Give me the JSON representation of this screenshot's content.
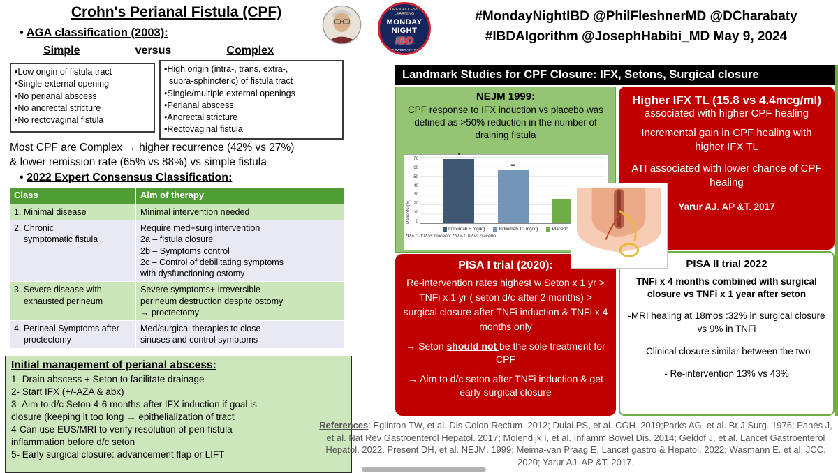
{
  "theme": {
    "table_header_green": "#4f9d35",
    "light_green_row": "#cbe6b8",
    "lavender_row": "#e9e9f4",
    "panel_green": "#cde7bd",
    "nejm_box_green": "#93c572",
    "red_box": "#c00000",
    "banner_black": "#000000",
    "pisa2_border_green": "#70ad47",
    "references_gray": "#595959"
  },
  "header": {
    "title": "Crohn's Perianal Fistula (CPF)",
    "social_line1": "#MondayNightIBD @PhilFleshnerMD @DCharabaty",
    "social_line2": "#IBDAlgorithm @JosephHabibi_MD May 9, 2024"
  },
  "logo": {
    "arc_top": "OPEN ACCESS LEARNING",
    "word1": "MONDAY",
    "word2": "NIGHT",
    "word3": "IBD",
    "tagline": "ONE TWEET AT A TIME"
  },
  "aga": {
    "bullet": "•",
    "heading": "AGA classification (2003):",
    "simple_label": "Simple",
    "versus_label": "versus",
    "complex_label": "Complex",
    "simple_items": "•Low origin of fistula tract\n•Single external opening\n•No perianal abscess\n•No anorectal stricture\n•No rectovaginal fistula",
    "complex_items": "•High origin (intra-, trans, extra-,\n  supra-sphincteric) of fistula tract\n•Single/multiple external openings\n•Perianal abscess\n•Anorectal stricture\n•Rectovaginal fistula",
    "summary_line1": "Most CPF are Complex → higher recurrence (42% vs 27%)",
    "summary_line2": "& lower remission rate (65% vs 88%) vs simple fistula"
  },
  "consensus": {
    "bullet": "•",
    "heading": "2022 Expert Consensus Classification:",
    "col1": "Class",
    "col2": "Aim of therapy",
    "row1_class": "1. Minimal disease",
    "row1_aim": "Minimal intervention needed",
    "row2_class": "2. Chronic\n    symptomatic fistula",
    "row2_aim": "Require med+surg intervention\n2a – fistula closure\n2b – Symptoms control\n2c – Control of debilitating symptoms\nwith dysfunctioning ostomy",
    "row3_class": "3. Severe disease with\n    exhausted perineum",
    "row3_aim": "Severe symptoms+ irreversible\nperineum destruction despite ostomy\n→ proctectomy",
    "row4_class": "4. Perineal Symptoms after\n    proctectomy",
    "row4_aim": "Med/surgical therapies to close\nsinuses and control symptoms"
  },
  "initial_mgmt": {
    "heading": "Initial management of perianal abscess:",
    "items": "1- Drain abscess + Seton to facilitate drainage\n2- Start IFX (+/-AZA & abx)\n3- Aim to d/c Seton 4-6 months after IFX induction if goal is\nclosure (keeping it too long → epithelialization of tract\n4-Can use EUS/MRI to verify resolution of peri-fistula\ninflammation before d/c seton\n5- Early surgical closure: advancement flap or LIFT"
  },
  "landmark": {
    "banner": "Landmark Studies for CPF Closure: IFX, Setons, Surgical closure",
    "nejm": {
      "heading": "NEJM 1999:",
      "body": "CPF response to IFX induction vs placebo was defined as >50% reduction in the number of draining fistula"
    },
    "ifx_tl": {
      "line1": "Higher IFX TL (15.8 vs 4.4mcg/ml)",
      "line2": "associated with higher CPF healing",
      "line3": "Incremental gain in CPF healing with higher IFX TL",
      "line4": "ATI associated with lower chance of CPF healing",
      "citation": "Yarur AJ. AP &T. 2017"
    },
    "pisa1": {
      "heading": "PISA I trial (2020):",
      "body": "Re-intervention rates highest w Seton x 1 yr > TNFi x 1 yr ( seton d/c after 2 months) > surgical closure after TNFi induction & TNFi x 4 months only",
      "arrow1_prefix": "→ Seton ",
      "arrow1_emph": "should not ",
      "arrow1_suffix": "be the sole treatment for CPF",
      "arrow2": "→ Aim to d/c  seton after TNFi induction & get early surgical closure"
    },
    "pisa2": {
      "heading": "PISA II trial 2022",
      "subheading": "TNFi x 4 months combined with surgical closure vs TNFi x 1 year after seton",
      "point1": "-MRI healing at 18mos :32% in surgical closure vs 9% in TNFi",
      "point2": "-Clinical closure similar between the two",
      "point3": "- Re-intervention 13% vs 43%"
    }
  },
  "references": {
    "label": "References",
    "body": ": Eglinton TW, et al. Dis Colon Rectum. 2012; Dulai PS, et al. CGH. 2019;Parks AG, et al. Br J Surg. 1976; Panés J, et al. Nat Rev Gastroenterol Hepatol. 2017; Molendijk I, et al. Inflamm Bowel Dis. 2014; Geldof J, et al. Lancet Gastroenterol Hepatol. 2022. Present DH, et al. NEJM. 1999; Meima-van Praag E, Lancet gastro & Hepatol. 2022; Wasmann E. et al, JCC. 2020; Yarur AJ. AP &T. 2017."
  },
  "chart_data": {
    "type": "bar",
    "title": "",
    "categories": [
      "Infliximab 5 mg/kg",
      "Infliximab 10 mg/kg",
      "Placebo"
    ],
    "values": [
      68,
      56,
      26
    ],
    "colors": [
      "#3f5771",
      "#7396b8",
      "#70ad47"
    ],
    "annotations": [
      "*",
      "**",
      ""
    ],
    "xlabel": "",
    "ylabel": "Patients (%)",
    "ylim": [
      0,
      70
    ],
    "ytick": 10,
    "grid": true,
    "legend_position": "bottom",
    "footnote": "*P = 0.002 vs placebo; **P = 0.02 vs placebo."
  }
}
